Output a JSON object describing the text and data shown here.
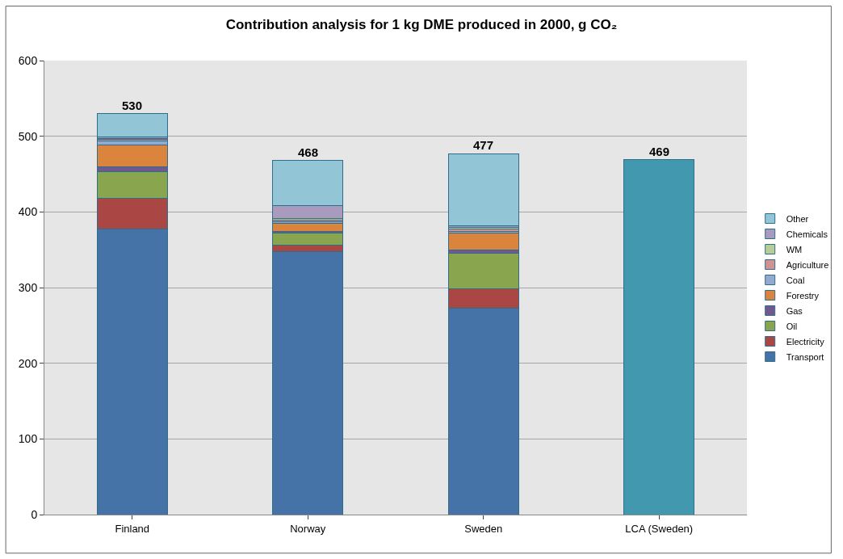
{
  "chart_data": {
    "type": "bar",
    "title": "Contribution analysis for 1 kg DME produced in 2000, g CO₂",
    "categories": [
      "Finland",
      "Norway",
      "Sweden",
      "LCA (Sweden)"
    ],
    "stacked": true,
    "series": [
      {
        "name": "Transport",
        "color": "#4572a7",
        "values": [
          377,
          347,
          273,
          null
        ]
      },
      {
        "name": "Electricity",
        "color": "#aa4643",
        "values": [
          41,
          9,
          25,
          null
        ]
      },
      {
        "name": "Oil",
        "color": "#89a54e",
        "values": [
          35,
          16,
          47,
          null
        ]
      },
      {
        "name": "Gas",
        "color": "#71588f",
        "values": [
          7,
          2,
          5,
          null
        ]
      },
      {
        "name": "Forestry",
        "color": "#db843d",
        "values": [
          28,
          11,
          22,
          null
        ]
      },
      {
        "name": "Coal",
        "color": "#93a9cf",
        "values": [
          6,
          2,
          2,
          null
        ]
      },
      {
        "name": "Agriculture",
        "color": "#d19392",
        "values": [
          2,
          2,
          3,
          null
        ]
      },
      {
        "name": "WM",
        "color": "#b9cd96",
        "values": [
          1,
          2,
          3,
          null
        ]
      },
      {
        "name": "Chemicals",
        "color": "#a99bbd",
        "values": [
          2,
          17,
          2,
          null
        ]
      },
      {
        "name": "Other",
        "color": "#92c5d6",
        "values": [
          31,
          60,
          95,
          null
        ]
      },
      {
        "color": "#4198af",
        "values": [
          null,
          null,
          null,
          469
        ]
      }
    ],
    "totals": [
      "530",
      "468",
      "477",
      "469"
    ],
    "ylim": [
      0,
      600
    ],
    "yticks": [
      0,
      100,
      200,
      300,
      400,
      500,
      600
    ],
    "grid": "y",
    "legend": "right"
  }
}
